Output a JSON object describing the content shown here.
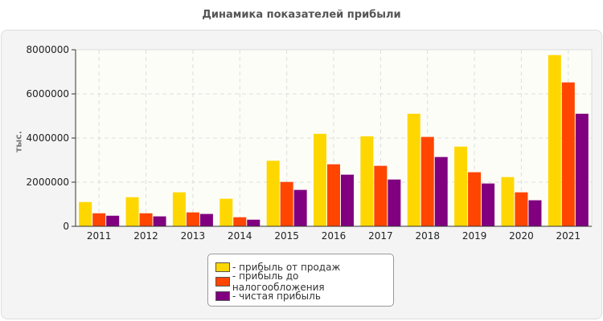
{
  "chart_data": {
    "type": "bar",
    "title": "Динамика показателей прибыли",
    "ylabel": "тыс.",
    "xlabel": "",
    "ylim": [
      0,
      8000000
    ],
    "yticks": [
      "0",
      "2000000",
      "4000000",
      "6000000",
      "8000000"
    ],
    "categories": [
      "2011",
      "2012",
      "2013",
      "2014",
      "2015",
      "2016",
      "2017",
      "2018",
      "2019",
      "2020",
      "2021"
    ],
    "series": [
      {
        "name": "- прибыль от продаж",
        "color": "#ffd700",
        "values": [
          1100000,
          1320000,
          1540000,
          1250000,
          2970000,
          4190000,
          4080000,
          5100000,
          3610000,
          2230000,
          7760000
        ]
      },
      {
        "name": "- прибыль до налогообложения",
        "color": "#ff4500",
        "values": [
          590000,
          590000,
          630000,
          410000,
          2010000,
          2810000,
          2740000,
          4050000,
          2450000,
          1540000,
          6520000
        ]
      },
      {
        "name": "- чистая прибыль",
        "color": "#800080",
        "values": [
          480000,
          450000,
          560000,
          300000,
          1650000,
          2340000,
          2120000,
          3140000,
          1940000,
          1180000,
          5100000
        ]
      }
    ],
    "grid": true,
    "legend_position": "bottom"
  }
}
